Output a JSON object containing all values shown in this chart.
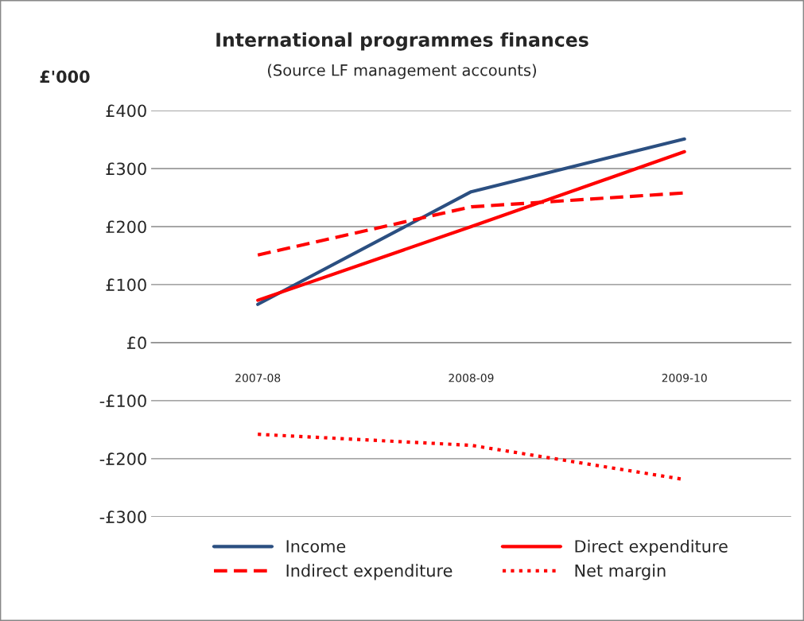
{
  "chart_data": {
    "type": "line",
    "title": "International programmes finances",
    "subtitle": "(Source LF management accounts)",
    "ylabel": "£'000",
    "categories": [
      "2007-08",
      "2008-09",
      "2009-10"
    ],
    "series": [
      {
        "name": "Income",
        "color": "#2b4f81",
        "values": [
          66,
          260,
          351
        ],
        "line_style": "solid"
      },
      {
        "name": "Direct expenditure",
        "color": "#ff0000",
        "values": [
          73,
          200,
          329
        ],
        "line_style": "solid"
      },
      {
        "name": "Indirect expenditure",
        "color": "#ff0000",
        "values": [
          151,
          234,
          258
        ],
        "line_style": "dashed"
      },
      {
        "name": "Net margin",
        "color": "#ff0000",
        "values": [
          -158,
          -177,
          -236
        ],
        "line_style": "dotted"
      }
    ],
    "ylim": [
      -300,
      400
    ],
    "yticks": [
      {
        "value": 400,
        "label": "£400"
      },
      {
        "value": 300,
        "label": "£300"
      },
      {
        "value": 200,
        "label": "£200"
      },
      {
        "value": 100,
        "label": "£100"
      },
      {
        "value": 0,
        "label": "£0"
      },
      {
        "value": -100,
        "label": "-£100"
      },
      {
        "value": -200,
        "label": "-£200"
      },
      {
        "value": -300,
        "label": "-£300"
      }
    ],
    "grid": "y",
    "legend": "bottom",
    "marker": "none"
  }
}
